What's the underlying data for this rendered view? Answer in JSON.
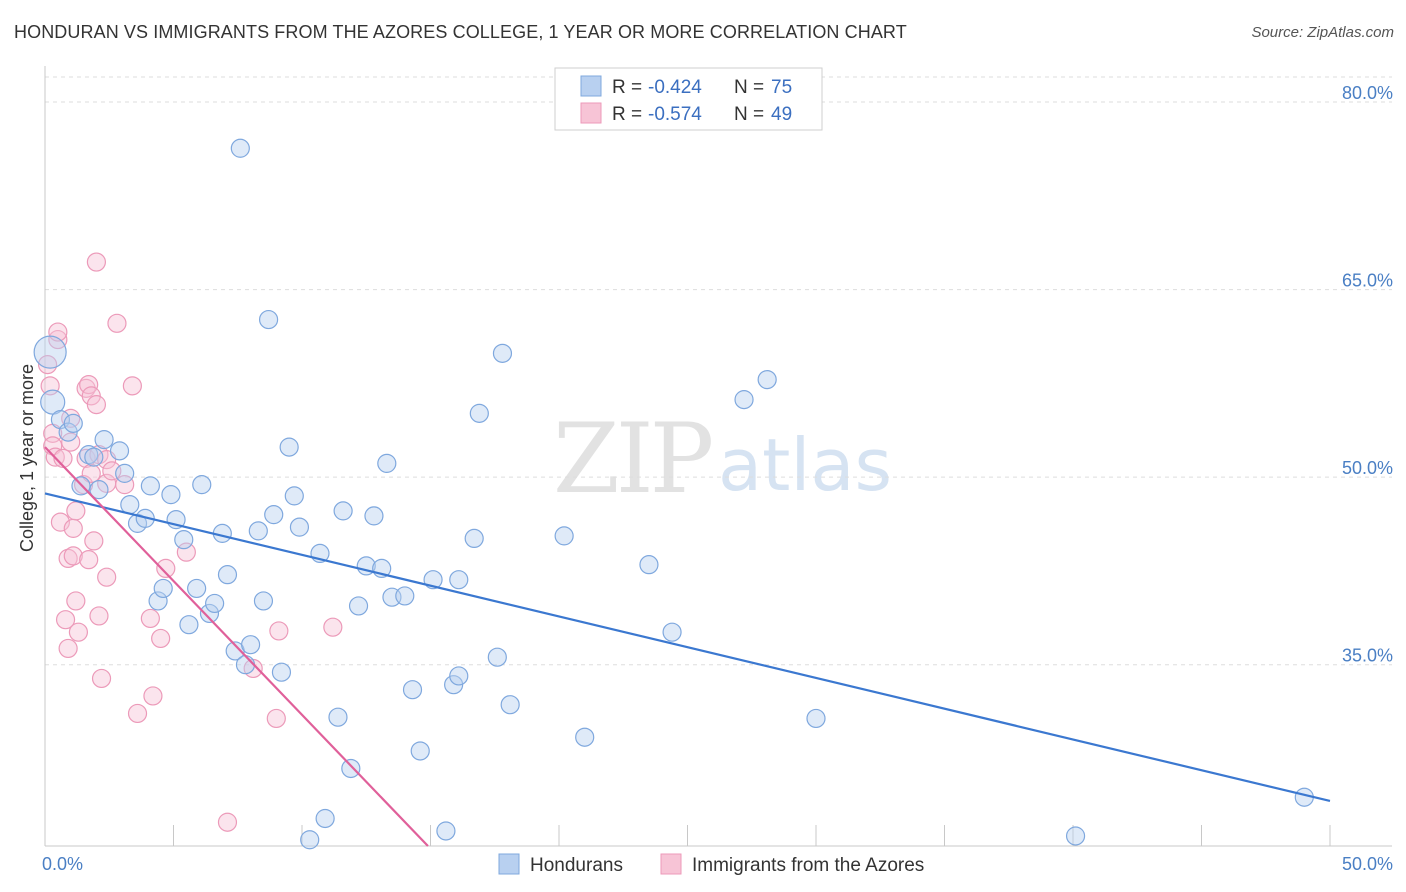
{
  "title": "HONDURAN VS IMMIGRANTS FROM THE AZORES COLLEGE, 1 YEAR OR MORE CORRELATION CHART",
  "source": "Source: ZipAtlas.com",
  "watermark": {
    "part1": "ZIP",
    "part2": "atlas"
  },
  "colors": {
    "blue": "#3b78d0",
    "blue_fill": "#b8d0f0",
    "blue_stroke": "#7fa8de",
    "pink": "#e0609a",
    "pink_fill": "#f7c4d6",
    "pink_stroke": "#ec9ab9",
    "grid": "#dddddd",
    "axis_text": "#4a7fc4"
  },
  "chart_data": {
    "type": "scatter",
    "title": "HONDURAN VS IMMIGRANTS FROM THE AZORES COLLEGE, 1 YEAR OR MORE CORRELATION CHART",
    "xlabel": "",
    "ylabel": "College, 1 year or more",
    "xlim": [
      0,
      50
    ],
    "ylim": [
      20.5,
      82
    ],
    "x_tick_labels": [
      {
        "value": 0,
        "label": "0.0%"
      },
      {
        "value": 50,
        "label": "50.0%"
      }
    ],
    "x_minor_ticks": [
      0,
      5,
      10,
      15,
      20,
      25,
      30,
      35,
      40,
      45,
      50
    ],
    "y_ticks": [
      {
        "value": 35,
        "label": "35.0%"
      },
      {
        "value": 50,
        "label": "50.0%"
      },
      {
        "value": 65,
        "label": "65.0%"
      },
      {
        "value": 80,
        "label": "80.0%"
      }
    ],
    "grid": true,
    "legend_top": [
      {
        "series": "Hondurans",
        "r_label": "R = ",
        "r_value": "-0.424",
        "n_label": "N = ",
        "n_value": "75"
      },
      {
        "series": "Immigrants from the Azores",
        "r_label": "R = ",
        "r_value": "-0.574",
        "n_label": "N = ",
        "n_value": "49"
      }
    ],
    "legend_bottom": [
      "Hondurans",
      "Immigrants from the Azores"
    ],
    "series": [
      {
        "name": "Hondurans",
        "color": "blue",
        "trend": {
          "x": [
            0,
            50
          ],
          "y": [
            48.7,
            24.1
          ]
        },
        "points": [
          [
            0.2,
            60.0,
            16
          ],
          [
            0.3,
            56.0,
            12
          ],
          [
            0.6,
            54.6,
            9
          ],
          [
            0.9,
            53.6,
            9
          ],
          [
            1.1,
            54.3,
            9
          ],
          [
            1.4,
            49.3,
            9
          ],
          [
            1.7,
            51.8,
            9
          ],
          [
            1.9,
            51.6,
            9
          ],
          [
            2.1,
            49.0,
            9
          ],
          [
            2.3,
            53.0,
            9
          ],
          [
            2.9,
            52.1,
            9
          ],
          [
            3.1,
            50.3,
            9
          ],
          [
            3.3,
            47.8,
            9
          ],
          [
            3.6,
            46.3,
            9
          ],
          [
            3.9,
            46.7,
            9
          ],
          [
            4.1,
            49.3,
            9
          ],
          [
            4.4,
            40.1,
            9
          ],
          [
            4.6,
            41.1,
            9
          ],
          [
            4.9,
            48.6,
            9
          ],
          [
            5.1,
            46.6,
            9
          ],
          [
            5.4,
            45.0,
            9
          ],
          [
            5.6,
            38.2,
            9
          ],
          [
            5.9,
            41.1,
            9
          ],
          [
            6.1,
            49.4,
            9
          ],
          [
            6.4,
            39.1,
            9
          ],
          [
            6.6,
            39.9,
            9
          ],
          [
            6.9,
            45.5,
            9
          ],
          [
            7.1,
            42.2,
            9
          ],
          [
            7.4,
            36.1,
            9
          ],
          [
            7.6,
            76.3,
            9
          ],
          [
            7.8,
            35.0,
            9
          ],
          [
            8.0,
            36.6,
            9
          ],
          [
            8.3,
            45.7,
            9
          ],
          [
            8.5,
            40.1,
            9
          ],
          [
            8.7,
            62.6,
            9
          ],
          [
            8.9,
            47.0,
            9
          ],
          [
            9.2,
            34.4,
            9
          ],
          [
            9.5,
            52.4,
            9
          ],
          [
            9.7,
            48.5,
            9
          ],
          [
            9.9,
            46.0,
            9
          ],
          [
            10.3,
            21.0,
            9
          ],
          [
            10.7,
            43.9,
            9
          ],
          [
            10.9,
            22.7,
            9
          ],
          [
            11.4,
            30.8,
            9
          ],
          [
            11.6,
            47.3,
            9
          ],
          [
            11.9,
            26.7,
            9
          ],
          [
            12.2,
            39.7,
            9
          ],
          [
            12.5,
            42.9,
            9
          ],
          [
            12.8,
            46.9,
            9
          ],
          [
            13.1,
            42.7,
            9
          ],
          [
            13.3,
            51.1,
            9
          ],
          [
            13.5,
            40.4,
            9
          ],
          [
            14.0,
            40.5,
            9
          ],
          [
            14.3,
            33.0,
            9
          ],
          [
            14.6,
            28.1,
            9
          ],
          [
            15.1,
            41.8,
            9
          ],
          [
            15.6,
            21.7,
            9
          ],
          [
            15.9,
            33.4,
            9
          ],
          [
            16.1,
            34.1,
            9
          ],
          [
            16.1,
            41.8,
            9
          ],
          [
            16.7,
            45.1,
            9
          ],
          [
            16.9,
            55.1,
            9
          ],
          [
            17.6,
            35.6,
            9
          ],
          [
            17.8,
            59.9,
            9
          ],
          [
            18.1,
            31.8,
            9
          ],
          [
            20.2,
            45.3,
            9
          ],
          [
            21.0,
            29.2,
            9
          ],
          [
            23.5,
            43.0,
            9
          ],
          [
            24.4,
            37.6,
            9
          ],
          [
            27.2,
            56.2,
            9
          ],
          [
            28.1,
            57.8,
            9
          ],
          [
            30.0,
            30.7,
            9
          ],
          [
            40.1,
            21.3,
            9
          ],
          [
            49.0,
            24.4,
            9
          ]
        ]
      },
      {
        "name": "Immigrants from the Azores",
        "color": "pink",
        "trend": {
          "x": [
            0,
            14.9
          ],
          "y": [
            52.4,
            20.5
          ]
        },
        "points": [
          [
            0.1,
            59.0,
            9
          ],
          [
            0.2,
            57.3,
            9
          ],
          [
            0.3,
            53.5,
            9
          ],
          [
            0.3,
            52.5,
            9
          ],
          [
            0.4,
            51.6,
            9
          ],
          [
            0.5,
            61.0,
            9
          ],
          [
            0.5,
            61.6,
            9
          ],
          [
            0.6,
            46.4,
            9
          ],
          [
            0.7,
            51.5,
            9
          ],
          [
            0.8,
            38.6,
            9
          ],
          [
            0.9,
            43.5,
            9
          ],
          [
            0.9,
            36.3,
            9
          ],
          [
            1.0,
            54.7,
            9
          ],
          [
            1.0,
            52.8,
            9
          ],
          [
            1.1,
            45.9,
            9
          ],
          [
            1.1,
            43.7,
            9
          ],
          [
            1.2,
            40.1,
            9
          ],
          [
            1.2,
            47.3,
            9
          ],
          [
            1.3,
            37.6,
            9
          ],
          [
            1.5,
            49.4,
            9
          ],
          [
            1.6,
            51.5,
            9
          ],
          [
            1.6,
            57.1,
            9
          ],
          [
            1.7,
            57.4,
            9
          ],
          [
            1.7,
            43.4,
            9
          ],
          [
            1.8,
            56.5,
            9
          ],
          [
            1.8,
            50.3,
            9
          ],
          [
            1.9,
            44.9,
            9
          ],
          [
            2.0,
            55.8,
            9
          ],
          [
            2.0,
            67.2,
            9
          ],
          [
            2.1,
            51.8,
            9
          ],
          [
            2.1,
            38.9,
            9
          ],
          [
            2.4,
            51.4,
            9
          ],
          [
            2.4,
            42.0,
            9
          ],
          [
            2.2,
            33.9,
            9
          ],
          [
            2.4,
            49.5,
            9
          ],
          [
            2.6,
            50.5,
            9
          ],
          [
            2.8,
            62.3,
            9
          ],
          [
            3.1,
            49.4,
            9
          ],
          [
            3.4,
            57.3,
            9
          ],
          [
            3.6,
            31.1,
            9
          ],
          [
            4.1,
            38.7,
            9
          ],
          [
            4.2,
            32.5,
            9
          ],
          [
            4.5,
            37.1,
            9
          ],
          [
            4.7,
            42.7,
            9
          ],
          [
            5.5,
            44.0,
            9
          ],
          [
            7.1,
            22.4,
            9
          ],
          [
            8.1,
            34.7,
            9
          ],
          [
            9.0,
            30.7,
            9
          ],
          [
            9.1,
            37.7,
            9
          ],
          [
            11.2,
            38.0,
            9
          ]
        ]
      }
    ]
  }
}
